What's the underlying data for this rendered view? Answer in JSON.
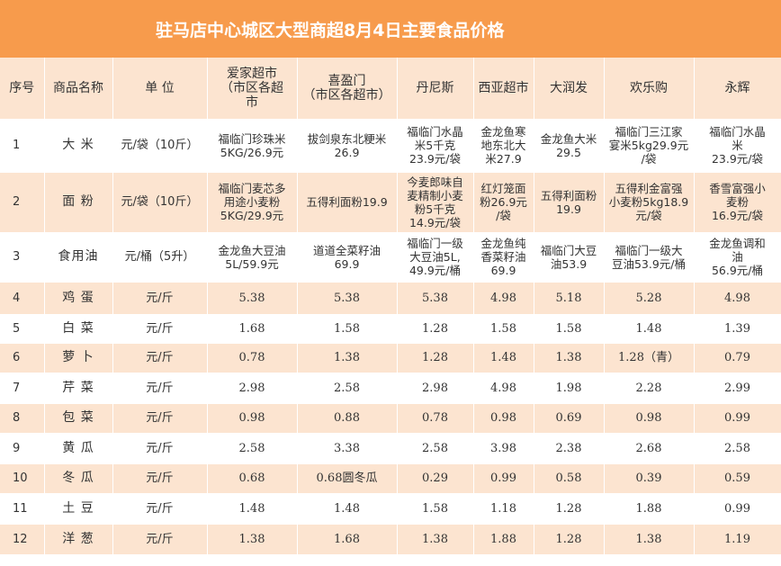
{
  "title": "驻马店中心城区大型商超8月4日主要食品价格",
  "headers": [
    "序号",
    "商品名称",
    "单  位",
    "爱家超市\n（市区各超\n市",
    "喜盈门\n（市区各超市）",
    "丹尼斯",
    "西亚超市",
    "大润发",
    "欢乐购",
    "永辉"
  ],
  "rows": [
    {
      "seq": "1",
      "name": "大  米",
      "unit": "元/袋（10斤）",
      "prices": [
        "福临门珍珠米\n5KG/26.9元",
        "拔剑泉东北粳米\n26.9",
        "福临门水晶\n米5千克\n23.9元/袋",
        "金龙鱼寒\n地东北大\n米27.9",
        "金龙鱼大米\n29.5",
        "福临门三江家\n宴米5kg29.9元\n/袋",
        "福临门水晶\n米\n23.9元/袋"
      ]
    },
    {
      "seq": "2",
      "name": "面  粉",
      "unit": "元/袋（10斤）",
      "prices": [
        "福临门麦芯多\n用途小麦粉\n5KG/29.9元",
        "五得利面粉19.9",
        "今麦郎味自\n麦精制小麦\n粉5千克\n14.9元/袋",
        "红灯笼面\n粉26.9元\n/袋",
        "五得利面粉\n19.9",
        "五得利金富强\n小麦粉5kg18.9\n元/袋",
        "香雪富强小\n麦粉\n16.9元/袋"
      ]
    },
    {
      "seq": "3",
      "name": "食用油",
      "unit": "元/桶（5升）",
      "prices": [
        "金龙鱼大豆油\n5L/59.9元",
        "道道全菜籽油\n69.9",
        "福临门一级\n大豆油5L,\n49.9元/桶",
        "金龙鱼纯\n香菜籽油\n69.9",
        "福临门大豆\n油53.9",
        "福临门一级大\n豆油53.9元/桶",
        "金龙鱼调和\n油\n56.9元/桶"
      ]
    },
    {
      "seq": "4",
      "name": "鸡  蛋",
      "unit": "元/斤",
      "prices": [
        "5.38",
        "5.38",
        "5.38",
        "4.98",
        "5.18",
        "5.28",
        "4.98"
      ]
    },
    {
      "seq": "5",
      "name": "白  菜",
      "unit": "元/斤",
      "prices": [
        "1.68",
        "1.58",
        "1.28",
        "1.58",
        "1.58",
        "1.48",
        "1.39"
      ]
    },
    {
      "seq": "6",
      "name": "萝  卜",
      "unit": "元/斤",
      "prices": [
        "0.78",
        "1.38",
        "1.28",
        "1.48",
        "1.38",
        "1.28（青）",
        "0.79"
      ]
    },
    {
      "seq": "7",
      "name": "芹  菜",
      "unit": "元/斤",
      "prices": [
        "2.98",
        "2.58",
        "2.98",
        "4.98",
        "1.98",
        "2.28",
        "2.99"
      ]
    },
    {
      "seq": "8",
      "name": "包  菜",
      "unit": "元/斤",
      "prices": [
        "0.98",
        "0.88",
        "0.78",
        "0.98",
        "0.69",
        "0.98",
        "0.99"
      ]
    },
    {
      "seq": "9",
      "name": "黄  瓜",
      "unit": "元/斤",
      "prices": [
        "2.58",
        "3.38",
        "2.58",
        "3.98",
        "2.38",
        "2.68",
        "2.58"
      ]
    },
    {
      "seq": "10",
      "name": "冬  瓜",
      "unit": "元/斤",
      "prices": [
        "0.68",
        "0.68圆冬瓜",
        "0.29",
        "0.99",
        "0.58",
        "0.39",
        "0.59"
      ]
    },
    {
      "seq": "11",
      "name": "土  豆",
      "unit": "元/斤",
      "prices": [
        "1.48",
        "1.48",
        "1.58",
        "1.18",
        "1.28",
        "1.88",
        "0.99"
      ]
    },
    {
      "seq": "12",
      "name": "洋  葱",
      "unit": "元/斤",
      "prices": [
        "1.38",
        "1.68",
        "1.38",
        "1.88",
        "1.28",
        "1.38",
        "1.19"
      ]
    }
  ]
}
